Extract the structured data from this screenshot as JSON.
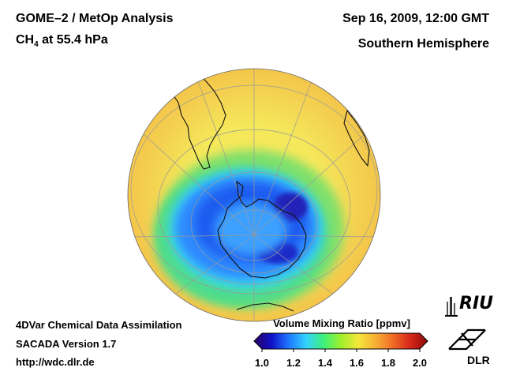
{
  "header": {
    "title_left_1": "GOME–2 / MetOp Analysis",
    "title_left_2_prefix": "CH",
    "title_left_2_sub": "4",
    "title_left_2_suffix": " at 55.4 hPa",
    "title_right_1": "Sep 16, 2009, 12:00 GMT",
    "title_right_2": "Southern Hemisphere"
  },
  "footer": {
    "line1": "4DVar Chemical Data Assimilation",
    "line2": "SACADA Version 1.7",
    "line3": "http://wdc.dlr.de"
  },
  "colorbar": {
    "title": "Volume Mixing Ratio [ppmv]",
    "ticks": [
      "1.0",
      "1.2",
      "1.4",
      "1.6",
      "1.8",
      "2.0"
    ],
    "min": 1.0,
    "max": 2.0,
    "colors": [
      "#2a0060",
      "#1010c8",
      "#1e78ff",
      "#33d2ff",
      "#3ef07a",
      "#9ef02c",
      "#f5e63a",
      "#f7b035",
      "#f06b25",
      "#d8261a",
      "#8a0a0a"
    ]
  },
  "map": {
    "projection": "orthographic",
    "hemisphere": "Southern Hemisphere",
    "colors": {
      "outer": "#f4c64a",
      "mid": "#f5e85a",
      "green": "#6de27a",
      "cyan": "#39d6f0",
      "blue": "#2e8aff",
      "deep": "#1a44e6",
      "core": "#2222b8",
      "coast": "#111111",
      "grid": "#999999"
    }
  },
  "logos": {
    "riu": "RIU",
    "dlr": "DLR"
  }
}
